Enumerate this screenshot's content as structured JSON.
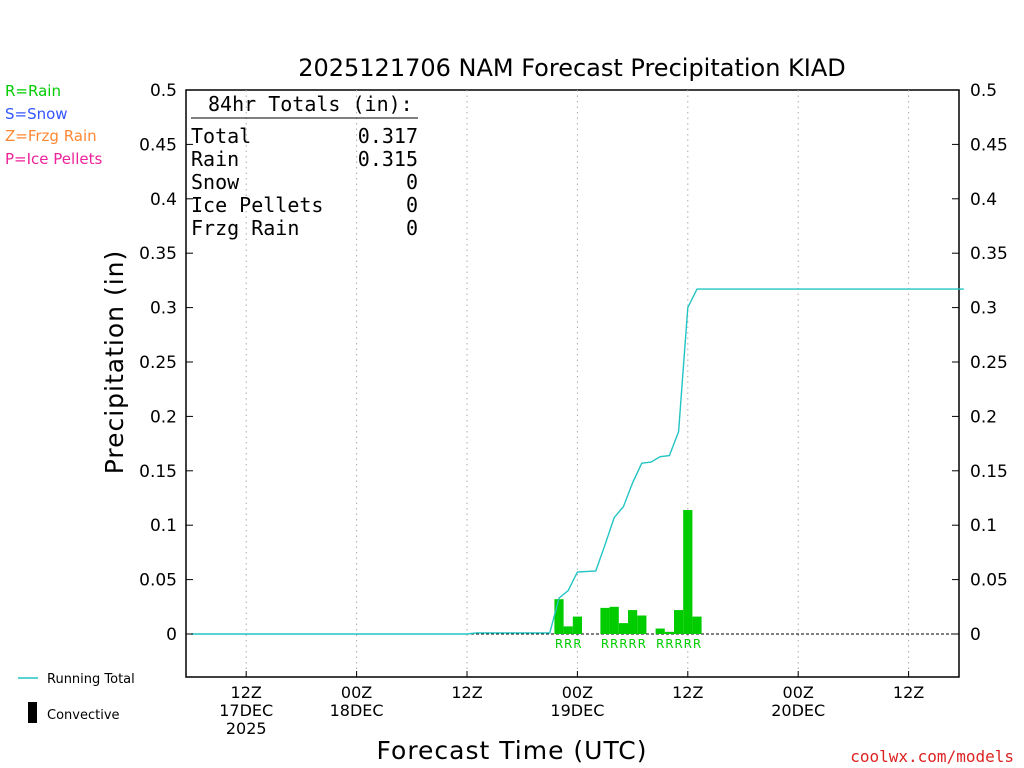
{
  "title": "2025121706 NAM Forecast Precipitation KIAD",
  "legend_types": [
    {
      "label": "R=Rain",
      "color": "#00cc00"
    },
    {
      "label": "S=Snow",
      "color": "#3355ff"
    },
    {
      "label": "Z=Frzg Rain",
      "color": "#ff8833"
    },
    {
      "label": "P=Ice Pellets",
      "color": "#ee2299"
    }
  ],
  "totals_box": {
    "heading": "84hr Totals (in):",
    "rows": [
      {
        "label": "Total",
        "value": "0.317"
      },
      {
        "label": "Rain",
        "value": "0.315"
      },
      {
        "label": "Snow",
        "value": "0"
      },
      {
        "label": "Ice Pellets",
        "value": "0"
      },
      {
        "label": "Frzg Rain",
        "value": "0"
      }
    ]
  },
  "bottom_legend": {
    "running_total": "Running Total",
    "convective": "Convective"
  },
  "credit": "coolwx.com/models",
  "colors": {
    "rain": "#00cc00",
    "running_total": "#22c4c4",
    "grid": "#aaaaaa",
    "credit": "#dd2222"
  },
  "chart_data": {
    "type": "bar",
    "title": "2025121706 NAM Forecast Precipitation KIAD",
    "xlabel": "Forecast Time (UTC)",
    "ylabel": "Precipitation (in)",
    "ylim": [
      -0.04,
      0.5
    ],
    "xlim_hours_from_init": [
      0,
      84
    ],
    "y_ticks": [
      "0",
      "0.05",
      "0.1",
      "0.15",
      "0.2",
      "0.25",
      "0.3",
      "0.35",
      "0.4",
      "0.45",
      "0.5"
    ],
    "x_ticks": [
      {
        "hour": 6,
        "lines": [
          "12Z",
          "17DEC",
          "2025"
        ]
      },
      {
        "hour": 18,
        "lines": [
          "00Z",
          "18DEC"
        ]
      },
      {
        "hour": 30,
        "lines": [
          "12Z"
        ]
      },
      {
        "hour": 42,
        "lines": [
          "00Z",
          "19DEC"
        ]
      },
      {
        "hour": 54,
        "lines": [
          "12Z"
        ]
      },
      {
        "hour": 66,
        "lines": [
          "00Z",
          "20DEC"
        ]
      },
      {
        "hour": 78,
        "lines": [
          "12Z"
        ]
      }
    ],
    "grid": "vertical dotted",
    "series": [
      {
        "name": "Rain",
        "kind": "bars",
        "bar_width_hours": 1,
        "points": [
          {
            "hour": 40,
            "value": 0.032
          },
          {
            "hour": 41,
            "value": 0.007
          },
          {
            "hour": 42,
            "value": 0.016
          },
          {
            "hour": 45,
            "value": 0.024
          },
          {
            "hour": 46,
            "value": 0.025
          },
          {
            "hour": 47,
            "value": 0.01
          },
          {
            "hour": 48,
            "value": 0.022
          },
          {
            "hour": 49,
            "value": 0.017
          },
          {
            "hour": 51,
            "value": 0.005
          },
          {
            "hour": 52,
            "value": 0.002
          },
          {
            "hour": 53,
            "value": 0.022
          },
          {
            "hour": 54,
            "value": 0.114
          },
          {
            "hour": 55,
            "value": 0.016
          }
        ]
      },
      {
        "name": "Running Total",
        "kind": "line",
        "points": [
          {
            "hour": 0,
            "value": 0
          },
          {
            "hour": 30,
            "value": 0
          },
          {
            "hour": 31,
            "value": 0.001
          },
          {
            "hour": 39,
            "value": 0.001
          },
          {
            "hour": 40,
            "value": 0.033
          },
          {
            "hour": 41,
            "value": 0.04
          },
          {
            "hour": 42,
            "value": 0.057
          },
          {
            "hour": 44,
            "value": 0.058
          },
          {
            "hour": 45,
            "value": 0.082
          },
          {
            "hour": 46,
            "value": 0.107
          },
          {
            "hour": 47,
            "value": 0.117
          },
          {
            "hour": 48,
            "value": 0.139
          },
          {
            "hour": 49,
            "value": 0.157
          },
          {
            "hour": 50,
            "value": 0.158
          },
          {
            "hour": 51,
            "value": 0.163
          },
          {
            "hour": 52,
            "value": 0.164
          },
          {
            "hour": 53,
            "value": 0.186
          },
          {
            "hour": 54,
            "value": 0.3
          },
          {
            "hour": 55,
            "value": 0.317
          },
          {
            "hour": 84,
            "value": 0.317
          }
        ]
      }
    ],
    "type_labels": [
      {
        "hour": 40,
        "text": "R"
      },
      {
        "hour": 41,
        "text": "R"
      },
      {
        "hour": 42,
        "text": "R"
      },
      {
        "hour": 45,
        "text": "R"
      },
      {
        "hour": 46,
        "text": "R"
      },
      {
        "hour": 47,
        "text": "R"
      },
      {
        "hour": 48,
        "text": "R"
      },
      {
        "hour": 49,
        "text": "R"
      },
      {
        "hour": 51,
        "text": "R"
      },
      {
        "hour": 52,
        "text": "R"
      },
      {
        "hour": 53,
        "text": "R"
      },
      {
        "hour": 54,
        "text": "R"
      },
      {
        "hour": 55,
        "text": "R"
      }
    ]
  }
}
